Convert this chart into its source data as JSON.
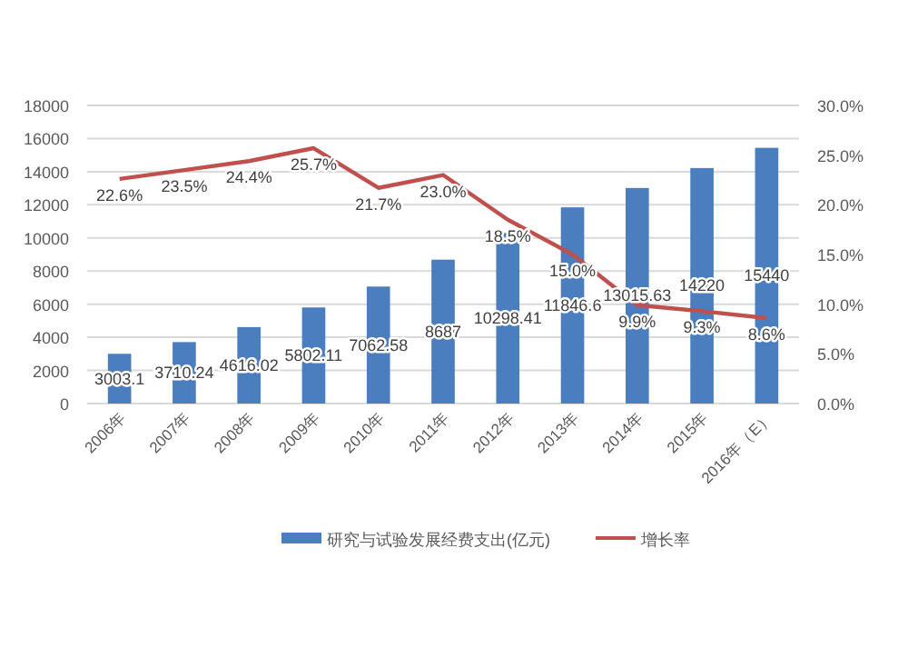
{
  "chart_data": {
    "type": "bar",
    "categories": [
      "2006年",
      "2007年",
      "2008年",
      "2009年",
      "2010年",
      "2011年",
      "2012年",
      "2013年",
      "2014年",
      "2015年",
      "2016年（E）"
    ],
    "series": [
      {
        "name": "研究与试验发展经费支出(亿元)",
        "color": "#4a7ebf",
        "values": [
          3003.1,
          3710.24,
          4616.02,
          5802.11,
          7062.58,
          8687,
          10298.41,
          11846.6,
          13015.63,
          14220,
          15440
        ],
        "value_labels": [
          "3003.1",
          "3710.24",
          "4616.02",
          "5802.11",
          "7062.58",
          "8687",
          "10298.41",
          "11846.6",
          "13015.63",
          "14220",
          "15440"
        ]
      },
      {
        "name": "增长率",
        "type": "line",
        "axis": "y2",
        "color": "#c0504d",
        "values": [
          22.6,
          23.5,
          24.4,
          25.7,
          21.7,
          23.0,
          18.5,
          15.0,
          9.9,
          9.3,
          8.6
        ],
        "value_labels": [
          "22.6%",
          "23.5%",
          "24.4%",
          "25.7%",
          "21.7%",
          "23.0%",
          "18.5%",
          "15.0%",
          "9.9%",
          "9.3%",
          "8.6%"
        ]
      }
    ],
    "ylim": [
      0,
      18000
    ],
    "yticks": [
      0,
      2000,
      4000,
      6000,
      8000,
      10000,
      12000,
      14000,
      16000,
      18000
    ],
    "y2lim": [
      0,
      30
    ],
    "y2ticks": [
      {
        "value": 0,
        "label": "0.0%"
      },
      {
        "value": 5,
        "label": "5.0%"
      },
      {
        "value": 10,
        "label": "10.0%"
      },
      {
        "value": 15,
        "label": "15.0%"
      },
      {
        "value": 20,
        "label": "20.0%"
      },
      {
        "value": 25,
        "label": "25.0%"
      },
      {
        "value": 30,
        "label": "30.0%"
      }
    ],
    "grid": "y",
    "legend": "bottom",
    "marker": "none",
    "line_style": "solid"
  }
}
